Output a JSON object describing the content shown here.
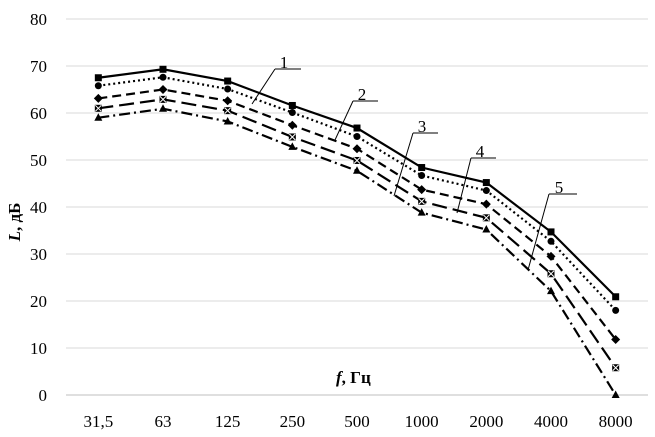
{
  "chart_data": {
    "type": "line",
    "title": "",
    "xlabel": "f, Гц",
    "ylabel": "L, дБ",
    "categories": [
      "31,5",
      "63",
      "125",
      "250",
      "500",
      "1000",
      "2000",
      "4000",
      "8000"
    ],
    "ylim": [
      0,
      80
    ],
    "yticks": [
      "0",
      "10",
      "20",
      "30",
      "40",
      "50",
      "60",
      "70",
      "80"
    ],
    "grid": "horizontal",
    "series": [
      {
        "name": "1",
        "marker": "square",
        "line": "solid",
        "values": [
          67.5,
          69.3,
          66.8,
          61.6,
          56.8,
          48.4,
          45.2,
          34.7,
          20.9
        ]
      },
      {
        "name": "2",
        "marker": "circle",
        "line": "dotted",
        "values": [
          65.8,
          67.6,
          65.1,
          60.1,
          55.0,
          46.7,
          43.5,
          32.7,
          18.0
        ]
      },
      {
        "name": "3",
        "marker": "diamond",
        "line": "dashed",
        "values": [
          63.1,
          65.0,
          62.6,
          57.4,
          52.4,
          43.7,
          40.6,
          29.5,
          11.8
        ]
      },
      {
        "name": "4",
        "marker": "x-square",
        "line": "long-dash",
        "values": [
          61.0,
          62.9,
          60.5,
          54.9,
          49.9,
          41.2,
          37.7,
          25.8,
          5.8
        ]
      },
      {
        "name": "5",
        "marker": "triangle",
        "line": "dash-dot",
        "values": [
          59.0,
          60.9,
          58.2,
          52.8,
          47.7,
          38.8,
          35.2,
          22.1,
          0.0
        ]
      }
    ]
  }
}
